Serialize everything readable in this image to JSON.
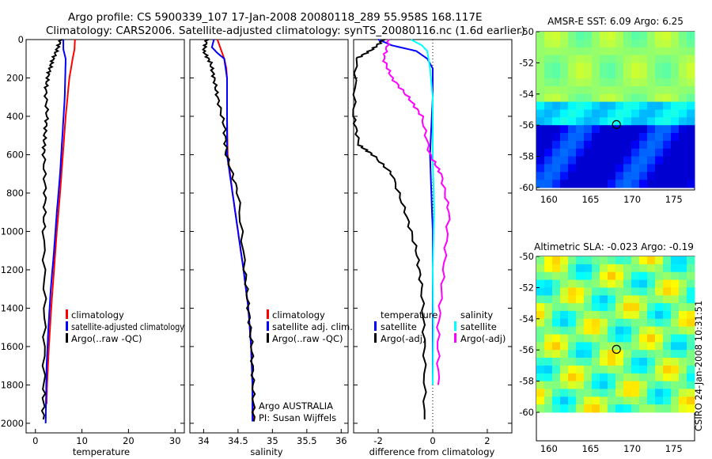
{
  "header": {
    "line1": "Argo profile: CS 5900339_107 17-Jan-2008 20080118_289 55.958S 168.117E",
    "line2": "Climatology: CARS2006. Satellite-adjusted climatology: synTS_20080116.nc (1.6d earlier)"
  },
  "side_label": "CSIRO 24-Jan-2008 10:31:51",
  "colors": {
    "red": "#ff0000",
    "blue": "#0000ff",
    "black": "#000000",
    "cyan": "#00ffff",
    "magenta": "#ff00ff"
  },
  "chart_data": [
    {
      "id": "temperature",
      "type": "line",
      "xlabel": "temperature",
      "xlim": [
        -2,
        32
      ],
      "ylim": [
        2050,
        0
      ],
      "xticks": [
        0,
        10,
        20,
        30
      ],
      "yticks": [
        0,
        200,
        400,
        600,
        800,
        1000,
        1200,
        1400,
        1600,
        1800,
        2000
      ],
      "legend": [
        {
          "label": "climatology",
          "color": "#ff0000"
        },
        {
          "label": "satellite-adjusted climatology",
          "color": "#0000ff"
        },
        {
          "label": "Argo(..raw -QC)",
          "color": "#000000"
        }
      ],
      "series": [
        {
          "name": "climatology",
          "color": "#ff0000",
          "x": [
            8.5,
            8.4,
            8.0,
            7.3,
            6.5,
            5.9,
            5.3,
            4.6,
            4.0,
            3.4,
            2.9,
            2.7,
            2.5,
            2.4
          ],
          "y": [
            0,
            50,
            100,
            200,
            400,
            600,
            800,
            1000,
            1200,
            1400,
            1600,
            1700,
            1800,
            1900
          ]
        },
        {
          "name": "satellite-adjusted climatology",
          "color": "#0000ff",
          "x": [
            6.0,
            6.0,
            6.5,
            6.3,
            5.8,
            5.3,
            4.6,
            4.0,
            3.3,
            2.8,
            2.4,
            2.3,
            2.2
          ],
          "y": [
            0,
            50,
            100,
            300,
            500,
            700,
            900,
            1100,
            1300,
            1500,
            1700,
            1850,
            2000
          ]
        },
        {
          "name": "Argo",
          "color": "#000000",
          "x": [
            5.5,
            4.5,
            3.5,
            2.8,
            2.2,
            2.5,
            2.0,
            1.8,
            2.1,
            1.8,
            2.0,
            1.8,
            1.7
          ],
          "y": [
            0,
            60,
            120,
            180,
            260,
            400,
            500,
            600,
            800,
            1000,
            1400,
            1800,
            1980
          ]
        }
      ]
    },
    {
      "id": "salinity",
      "type": "line",
      "xlabel": "salinity",
      "xlim": [
        33.8,
        36.1
      ],
      "ylim": [
        2050,
        0
      ],
      "xticks": [
        34,
        34.5,
        35,
        35.5,
        36
      ],
      "legend": [
        {
          "label": "climatology",
          "color": "#ff0000"
        },
        {
          "label": "satellite adj. clim.",
          "color": "#0000ff"
        },
        {
          "label": "Argo(..raw -QC)",
          "color": "#000000"
        }
      ],
      "annotations": [
        "Argo AUSTRALIA",
        "PI: Susan Wijffels"
      ],
      "series": [
        {
          "name": "climatology",
          "color": "#ff0000",
          "x": [
            34.2,
            34.25,
            34.3,
            34.33,
            34.34,
            34.34,
            34.35,
            34.42,
            34.5,
            34.58,
            34.65,
            34.69,
            34.71,
            34.72
          ],
          "y": [
            0,
            50,
            100,
            150,
            200,
            400,
            600,
            800,
            1000,
            1200,
            1400,
            1600,
            1800,
            1990
          ]
        },
        {
          "name": "satellite adj. clim.",
          "color": "#0000ff",
          "x": [
            34.15,
            34.12,
            34.2,
            34.3,
            34.34,
            34.34,
            34.34,
            34.42,
            34.5,
            34.58,
            34.65,
            34.69,
            34.71,
            34.71
          ],
          "y": [
            0,
            40,
            70,
            100,
            200,
            400,
            600,
            800,
            1000,
            1200,
            1400,
            1600,
            1800,
            1990
          ]
        },
        {
          "name": "Argo",
          "color": "#000000",
          "x": [
            34.05,
            34.0,
            34.1,
            34.15,
            34.2,
            34.3,
            34.33,
            34.5,
            34.6,
            34.65,
            34.7,
            34.72,
            34.73
          ],
          "y": [
            0,
            60,
            120,
            200,
            300,
            450,
            600,
            800,
            1200,
            1400,
            1600,
            1800,
            1990
          ]
        }
      ]
    },
    {
      "id": "difference",
      "type": "line",
      "xlabel": "difference from climatology",
      "xlim": [
        -2.9,
        2.9
      ],
      "ylim": [
        2050,
        0
      ],
      "xticks": [
        -2,
        0,
        2
      ],
      "legend_headers": [
        "temperature",
        "salinity"
      ],
      "legend": [
        {
          "label": "satellite",
          "color": "#0000ff"
        },
        {
          "label": "Argo(-adj)",
          "color": "#000000"
        },
        {
          "label": "satellite",
          "color": "#00ffff"
        },
        {
          "label": "Argo(-adj)",
          "color": "#ff00ff"
        }
      ],
      "series": [
        {
          "name": "temperature satellite",
          "color": "#0000ff",
          "x": [
            -2.0,
            -1.5,
            -0.6,
            -0.2,
            0.0,
            0.0,
            -0.1,
            0.0,
            0.0,
            0.0
          ],
          "y": [
            0,
            30,
            60,
            100,
            150,
            300,
            600,
            1000,
            1400,
            1800
          ]
        },
        {
          "name": "temperature Argo",
          "color": "#000000",
          "x": [
            -1.8,
            -2.2,
            -2.8,
            -2.9,
            -2.7,
            -2.2,
            -1.5,
            -1.0,
            -0.6,
            -0.4,
            -0.3,
            -0.3
          ],
          "y": [
            0,
            50,
            100,
            400,
            550,
            600,
            700,
            900,
            1100,
            1300,
            1600,
            1980
          ]
        },
        {
          "name": "salinity satellite",
          "color": "#00ffff",
          "x": [
            -0.8,
            -0.4,
            -0.2,
            -0.1,
            0.0,
            0.0,
            0.05,
            0.0,
            0.02,
            0.0
          ],
          "y": [
            0,
            30,
            60,
            150,
            300,
            600,
            900,
            1200,
            1500,
            1800
          ]
        },
        {
          "name": "salinity Argo",
          "color": "#ff00ff",
          "x": [
            -1.6,
            -1.8,
            -1.5,
            -0.9,
            -0.4,
            -0.1,
            0.3,
            0.6,
            0.4,
            0.2,
            0.2
          ],
          "y": [
            0,
            100,
            200,
            300,
            400,
            600,
            700,
            900,
            1200,
            1500,
            1800
          ]
        }
      ]
    },
    {
      "id": "sst_map",
      "type": "heatmap",
      "title": "AMSR-E SST: 6.09 Argo: 6.25",
      "xlim": [
        158.5,
        177.5
      ],
      "ylim": [
        -60,
        -50
      ],
      "xticks": [
        160,
        165,
        170,
        175
      ],
      "yticks": [
        -50,
        -52,
        -54,
        -56,
        -58,
        -60
      ],
      "argo_position": {
        "lon": 168.117,
        "lat": -55.958
      }
    },
    {
      "id": "sla_map",
      "type": "heatmap",
      "title": "Altimetric SLA: -0.023 Argo: -0.19",
      "xlim": [
        158.5,
        177.5
      ],
      "ylim": [
        -60,
        -50
      ],
      "xticks": [
        160,
        165,
        170,
        175
      ],
      "yticks": [
        -50,
        -52,
        -54,
        -56,
        -58,
        -60
      ],
      "argo_position": {
        "lon": 168.117,
        "lat": -55.958
      }
    }
  ]
}
